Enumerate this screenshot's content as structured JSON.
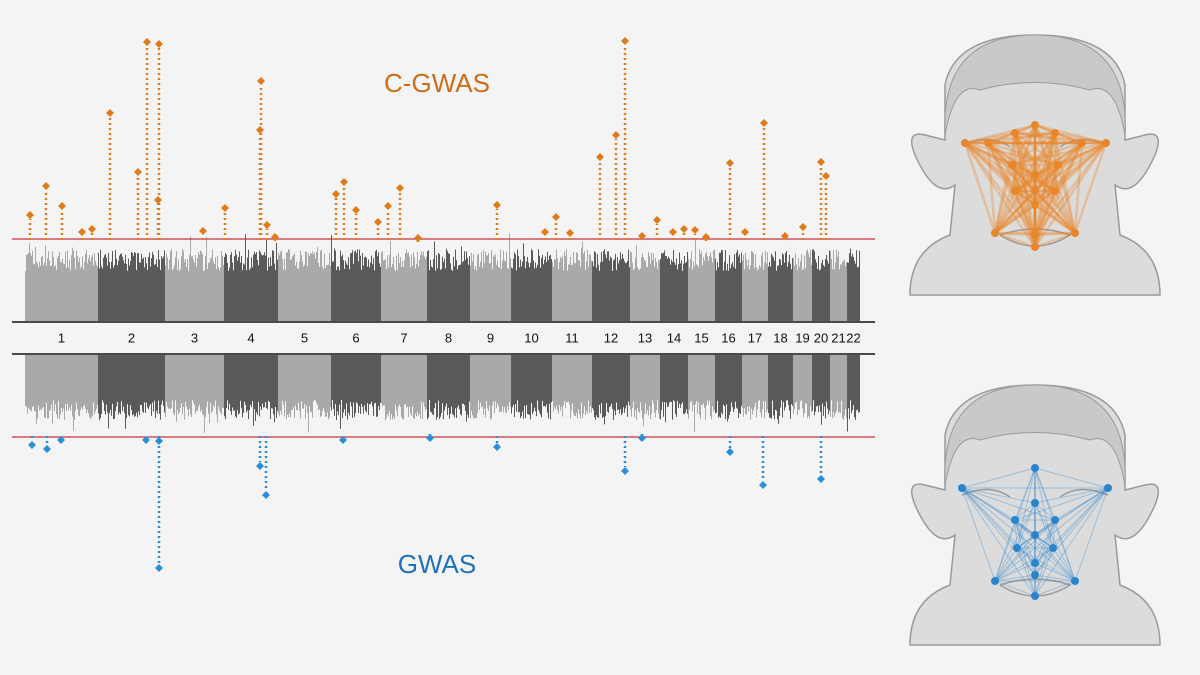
{
  "header": {
    "top_label": "C-GWAS",
    "bottom_label": "GWAS"
  },
  "chromosomes": [
    "1",
    "2",
    "3",
    "4",
    "5",
    "6",
    "7",
    "8",
    "9",
    "10",
    "11",
    "12",
    "13",
    "14",
    "15",
    "16",
    "17",
    "18",
    "19",
    "20",
    "21",
    "22"
  ]
}
